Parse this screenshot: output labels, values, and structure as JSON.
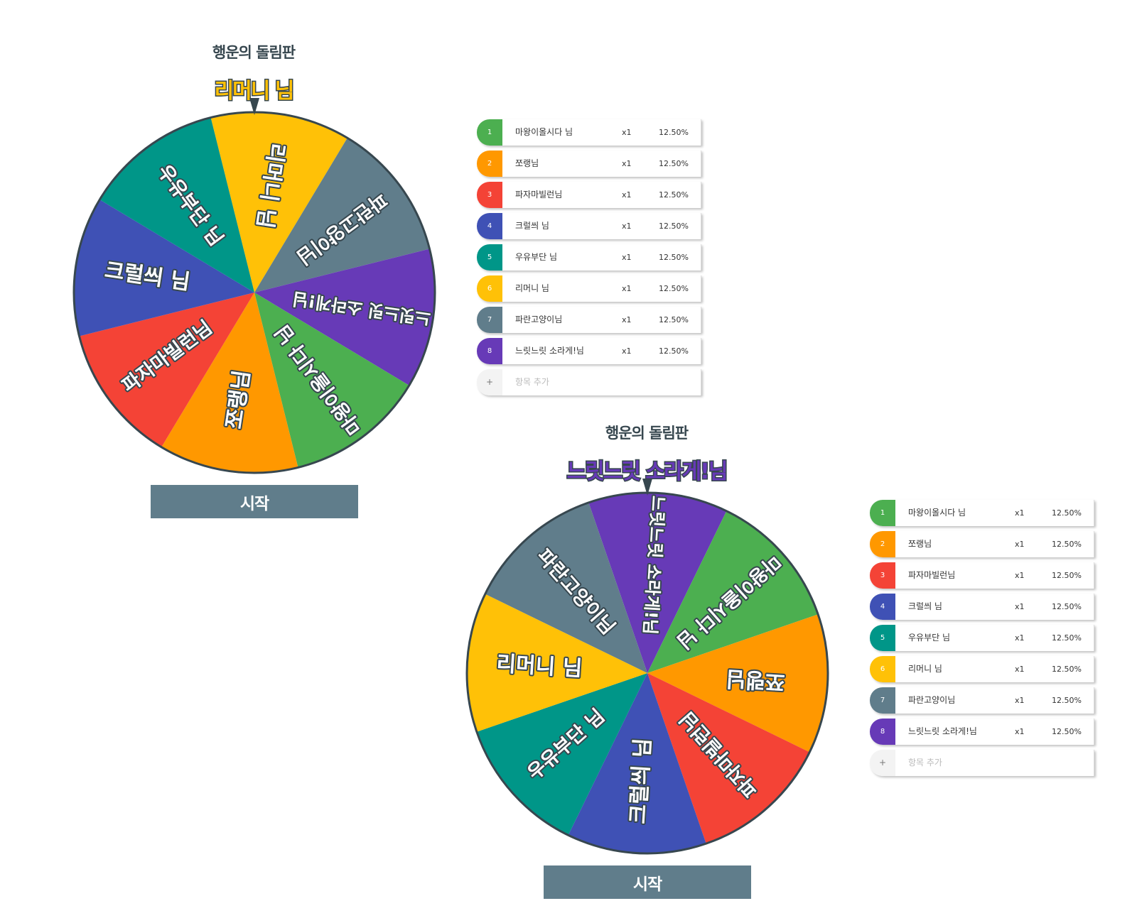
{
  "roulettes": [
    {
      "title": "행운의 돌림판",
      "result": "리머니 님",
      "result_color": "#ffc107",
      "rotation_deg": -14,
      "start_label": "시작",
      "items_order_clockwise": [
        5,
        6,
        7,
        0,
        1,
        2,
        3,
        4
      ],
      "items": [
        {
          "num": "1",
          "name": "마왕이올시다 님",
          "weight": "x1",
          "percent": "12.50%",
          "color": "#4caf50"
        },
        {
          "num": "2",
          "name": "쪼랭님",
          "weight": "x1",
          "percent": "12.50%",
          "color": "#ff9800"
        },
        {
          "num": "3",
          "name": "파자마빌런님",
          "weight": "x1",
          "percent": "12.50%",
          "color": "#f44336"
        },
        {
          "num": "4",
          "name": "크럴씌 님",
          "weight": "x1",
          "percent": "12.50%",
          "color": "#3f51b5"
        },
        {
          "num": "5",
          "name": "우유부단 님",
          "weight": "x1",
          "percent": "12.50%",
          "color": "#009688"
        },
        {
          "num": "6",
          "name": "리머니 님",
          "weight": "x1",
          "percent": "12.50%",
          "color": "#ffc107"
        },
        {
          "num": "7",
          "name": "파란고양이님",
          "weight": "x1",
          "percent": "12.50%",
          "color": "#607d8b"
        },
        {
          "num": "8",
          "name": "느릿느릿 소라게!님",
          "weight": "x1",
          "percent": "12.50%",
          "color": "#673ab7"
        }
      ],
      "add_item": {
        "icon": "+",
        "placeholder": "항목 추가"
      }
    },
    {
      "title": "행운의 돌림판",
      "result": "느릿느릿 소라게!님",
      "result_color": "#673ab7",
      "rotation_deg": -19,
      "start_label": "시작",
      "items_order_clockwise": [
        7,
        0,
        1,
        2,
        3,
        4,
        5,
        6
      ],
      "items": [
        {
          "num": "1",
          "name": "마왕이올시다 님",
          "weight": "x1",
          "percent": "12.50%",
          "color": "#4caf50"
        },
        {
          "num": "2",
          "name": "쪼랭님",
          "weight": "x1",
          "percent": "12.50%",
          "color": "#ff9800"
        },
        {
          "num": "3",
          "name": "파자마빌런님",
          "weight": "x1",
          "percent": "12.50%",
          "color": "#f44336"
        },
        {
          "num": "4",
          "name": "크럴씌 님",
          "weight": "x1",
          "percent": "12.50%",
          "color": "#3f51b5"
        },
        {
          "num": "5",
          "name": "우유부단 님",
          "weight": "x1",
          "percent": "12.50%",
          "color": "#009688"
        },
        {
          "num": "6",
          "name": "리머니 님",
          "weight": "x1",
          "percent": "12.50%",
          "color": "#ffc107"
        },
        {
          "num": "7",
          "name": "파란고양이님",
          "weight": "x1",
          "percent": "12.50%",
          "color": "#607d8b"
        },
        {
          "num": "8",
          "name": "느릿느릿 소라게!님",
          "weight": "x1",
          "percent": "12.50%",
          "color": "#673ab7"
        }
      ],
      "add_item": {
        "icon": "+",
        "placeholder": "항목 추가"
      }
    }
  ],
  "colors": {
    "outline": "#37474f",
    "button": "#607d8b"
  }
}
